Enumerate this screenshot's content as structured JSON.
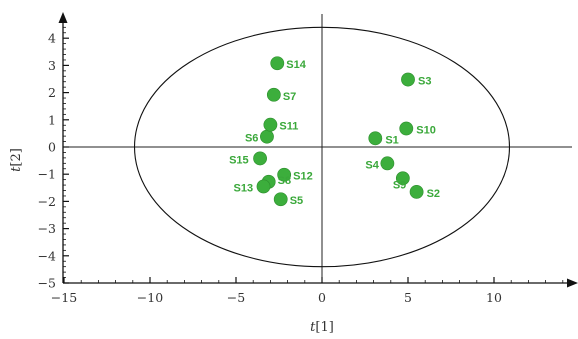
{
  "chart_data": {
    "type": "scatter",
    "title": "",
    "xlabel": "t[1]",
    "ylabel": "t[2]",
    "xlim": [
      -15,
      15
    ],
    "ylim": [
      -5,
      4.6
    ],
    "xticks": [
      -15,
      -10,
      -5,
      0,
      5,
      10
    ],
    "yticks": [
      -5,
      -4,
      -3,
      -2,
      -1,
      0,
      1,
      2,
      3,
      4
    ],
    "x_tick_labels": [
      "−15",
      "−10",
      "−5",
      "0",
      "5",
      "10"
    ],
    "y_tick_labels": [
      "−5",
      "−4",
      "−3",
      "−2",
      "−1",
      "0",
      "1",
      "2",
      "3",
      "4"
    ],
    "ellipse": {
      "center": [
        0,
        -0.0
      ],
      "rx": 10.9,
      "ry": 4.4
    },
    "grid": false,
    "marker_color": "#3cae3c",
    "label_color": "#3aa83a",
    "points": [
      {
        "label": "S1",
        "x": 3.1,
        "y": 0.32
      },
      {
        "label": "S2",
        "x": 5.5,
        "y": -1.65
      },
      {
        "label": "S3",
        "x": 5.0,
        "y": 2.48
      },
      {
        "label": "S4",
        "x": 3.8,
        "y": -0.6
      },
      {
        "label": "S5",
        "x": -2.4,
        "y": -1.92
      },
      {
        "label": "S6",
        "x": -3.2,
        "y": 0.38
      },
      {
        "label": "S7",
        "x": -2.8,
        "y": 1.92
      },
      {
        "label": "S8",
        "x": -3.1,
        "y": -1.28
      },
      {
        "label": "S9",
        "x": 4.7,
        "y": -1.15
      },
      {
        "label": "S10",
        "x": 4.9,
        "y": 0.68
      },
      {
        "label": "S11",
        "x": -3.0,
        "y": 0.82
      },
      {
        "label": "S12",
        "x": -2.2,
        "y": -1.02
      },
      {
        "label": "S13",
        "x": -3.4,
        "y": -1.45
      },
      {
        "label": "S14",
        "x": -2.6,
        "y": 3.08
      },
      {
        "label": "S15",
        "x": -3.6,
        "y": -0.42
      }
    ]
  }
}
